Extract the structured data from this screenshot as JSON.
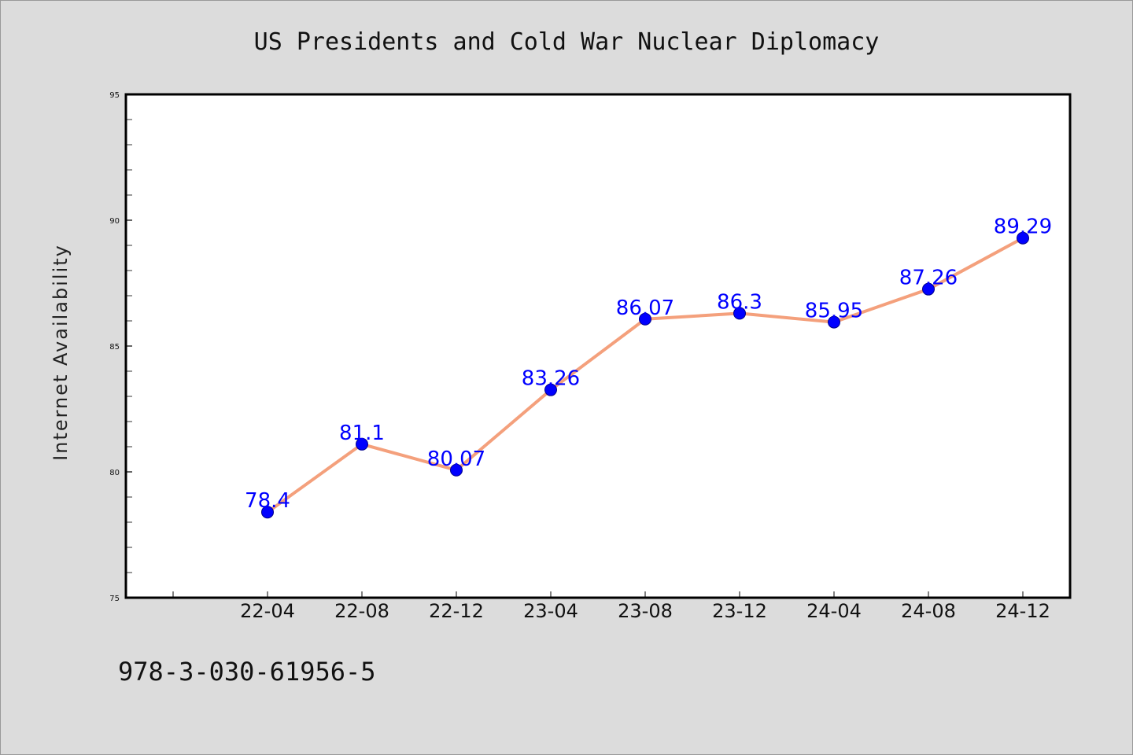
{
  "chart_data": {
    "type": "line",
    "title": "US Presidents and Cold War Nuclear Diplomacy",
    "xlabel": "",
    "ylabel": "Internet Availability",
    "categories": [
      "22-04",
      "22-08",
      "22-12",
      "23-04",
      "23-08",
      "23-12",
      "24-04",
      "24-08",
      "24-12"
    ],
    "values": [
      78.4,
      81.1,
      80.07,
      83.26,
      86.07,
      86.3,
      85.95,
      87.26,
      89.29
    ],
    "data_labels": [
      "78.4",
      "81.1",
      "80.07",
      "83.26",
      "86.07",
      "86.3",
      "85.95",
      "87.26",
      "89.29"
    ],
    "ylim": [
      75,
      95
    ],
    "yticks": [
      75,
      80,
      85,
      90,
      95
    ],
    "grid": false,
    "line_color": "#f4a07c",
    "marker_color": "#0000ff",
    "label_color": "#0000ff"
  },
  "footer": {
    "isbn": "978-3-030-61956-5"
  }
}
